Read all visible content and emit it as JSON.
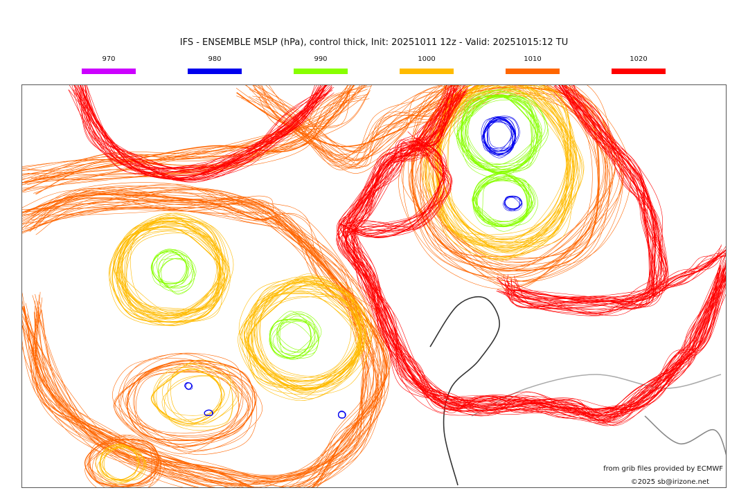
{
  "title": "IFS - ENSEMBLE MSLP (hPa), control thick, Init: 20251011 12z - Valid: 20251015:12 TU",
  "legend": [
    {
      "label": "970",
      "color": "#cc00ff"
    },
    {
      "label": "980",
      "color": "#0000ee"
    },
    {
      "label": "990",
      "color": "#88ff00"
    },
    {
      "label": "1000",
      "color": "#ffbb00"
    },
    {
      "label": "1010",
      "color": "#ff6600"
    },
    {
      "label": "1020",
      "color": "#ff0000"
    }
  ],
  "credits": {
    "source": "from grib files provided by ECMWF",
    "copyright": "©2025 sb@irizone.net"
  }
}
